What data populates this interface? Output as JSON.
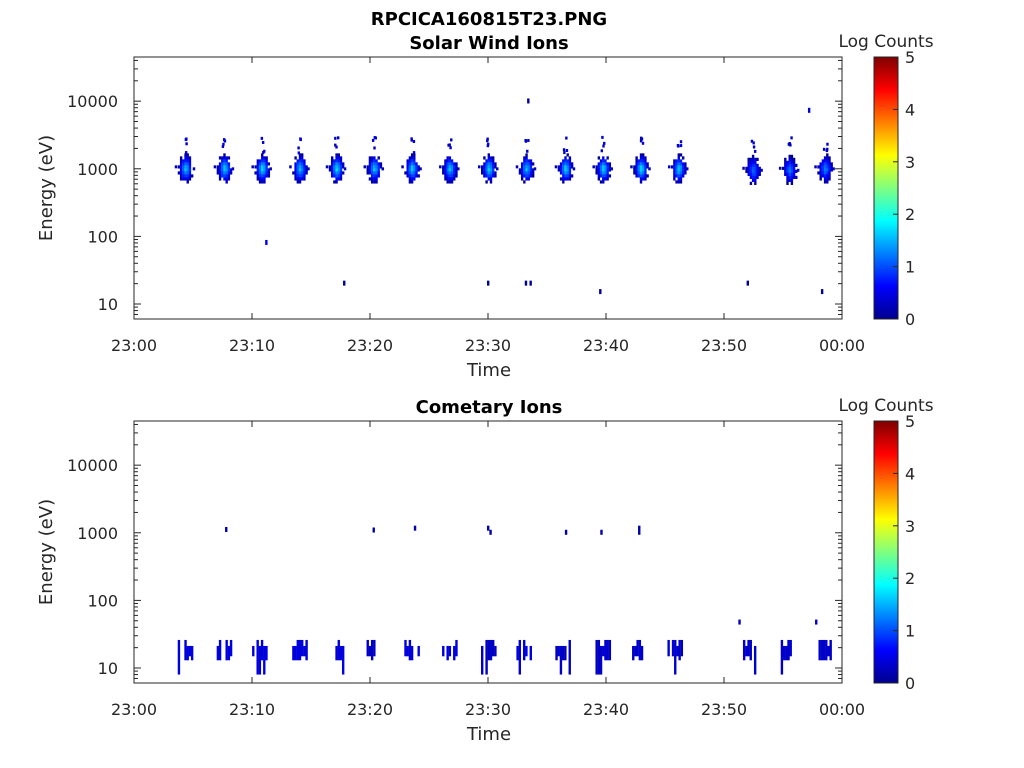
{
  "figure": {
    "title": "RPCICA160815T23.PNG"
  },
  "chart_data": [
    {
      "type": "heatmap",
      "title": "Solar Wind Ions",
      "xlabel": "Time",
      "ylabel": "Energy (eV)",
      "x_ticks": [
        "23:00",
        "23:10",
        "23:20",
        "23:30",
        "23:40",
        "23:50",
        "00:00"
      ],
      "y_ticks": [
        "10",
        "100",
        "1000",
        "10000"
      ],
      "y_scale": "log",
      "ylim": [
        6,
        45000
      ],
      "xlim_minutes": [
        0,
        60
      ],
      "colorbar": {
        "label": "Log Counts",
        "ticks": [
          "0",
          "1",
          "2",
          "3",
          "4",
          "5"
        ],
        "range": [
          0,
          5
        ],
        "colormap": "jet"
      },
      "blobs": [
        {
          "t": 4.3,
          "e": 1050,
          "peak": 1.6
        },
        {
          "t": 7.6,
          "e": 1050,
          "peak": 1.7
        },
        {
          "t": 10.8,
          "e": 1050,
          "peak": 1.8
        },
        {
          "t": 14.0,
          "e": 1050,
          "peak": 1.6
        },
        {
          "t": 17.1,
          "e": 1050,
          "peak": 1.8
        },
        {
          "t": 20.3,
          "e": 1050,
          "peak": 1.6
        },
        {
          "t": 23.5,
          "e": 1050,
          "peak": 1.7
        },
        {
          "t": 26.7,
          "e": 1050,
          "peak": 1.6
        },
        {
          "t": 30.0,
          "e": 1050,
          "peak": 1.7
        },
        {
          "t": 33.2,
          "e": 1050,
          "peak": 1.6
        },
        {
          "t": 36.5,
          "e": 1050,
          "peak": 1.7
        },
        {
          "t": 39.7,
          "e": 1050,
          "peak": 1.7
        },
        {
          "t": 42.9,
          "e": 1050,
          "peak": 1.8
        },
        {
          "t": 46.1,
          "e": 1050,
          "peak": 1.7
        },
        {
          "t": 52.4,
          "e": 1000,
          "peak": 1.2
        },
        {
          "t": 55.5,
          "e": 1000,
          "peak": 1.2
        },
        {
          "t": 58.5,
          "e": 1050,
          "peak": 1.3
        }
      ],
      "points": [
        {
          "t": 11.2,
          "e": 80,
          "v": 0.5
        },
        {
          "t": 17.8,
          "e": 20,
          "v": 0.1
        },
        {
          "t": 30.0,
          "e": 20,
          "v": 0.1
        },
        {
          "t": 33.2,
          "e": 20,
          "v": 0.1
        },
        {
          "t": 33.6,
          "e": 20,
          "v": 0.1
        },
        {
          "t": 39.5,
          "e": 15,
          "v": 0.1
        },
        {
          "t": 52.0,
          "e": 20,
          "v": 0.1
        },
        {
          "t": 58.3,
          "e": 15,
          "v": 0.1
        },
        {
          "t": 33.4,
          "e": 9900,
          "v": 0.1
        },
        {
          "t": 57.2,
          "e": 7200,
          "v": 0.4
        }
      ]
    },
    {
      "type": "heatmap",
      "title": "Cometary Ions",
      "xlabel": "Time",
      "ylabel": "Energy (eV)",
      "x_ticks": [
        "23:00",
        "23:10",
        "23:20",
        "23:30",
        "23:40",
        "23:50",
        "00:00"
      ],
      "y_ticks": [
        "10",
        "100",
        "1000",
        "10000"
      ],
      "y_scale": "log",
      "ylim": [
        6,
        45000
      ],
      "xlim_minutes": [
        0,
        60
      ],
      "colorbar": {
        "label": "Log Counts",
        "ticks": [
          "0",
          "1",
          "2",
          "3",
          "4",
          "5"
        ],
        "range": [
          0,
          5
        ],
        "colormap": "jet"
      },
      "columns": [
        {
          "t": 4.3,
          "v": 0.4
        },
        {
          "t": 7.6,
          "v": 0.4
        },
        {
          "t": 10.6,
          "v": 0.4
        },
        {
          "t": 14.0,
          "v": 0.4
        },
        {
          "t": 17.1,
          "v": 0.4
        },
        {
          "t": 20.3,
          "v": 0.3
        },
        {
          "t": 23.5,
          "v": 0.4
        },
        {
          "t": 26.7,
          "v": 0.4
        },
        {
          "t": 30.0,
          "v": 0.3
        },
        {
          "t": 33.0,
          "v": 0.4
        },
        {
          "t": 36.3,
          "v": 0.3
        },
        {
          "t": 39.7,
          "v": 0.3
        },
        {
          "t": 42.8,
          "v": 0.3
        },
        {
          "t": 45.8,
          "v": 0.3
        },
        {
          "t": 52.2,
          "v": 0.3
        },
        {
          "t": 55.4,
          "v": 0.3
        },
        {
          "t": 58.6,
          "v": 0.3
        }
      ],
      "points": [
        {
          "t": 7.8,
          "e": 1100,
          "v": 0.2
        },
        {
          "t": 20.3,
          "e": 1080,
          "v": 0.2
        },
        {
          "t": 23.8,
          "e": 1150,
          "v": 0.2
        },
        {
          "t": 30.0,
          "e": 1150,
          "v": 0.2
        },
        {
          "t": 30.2,
          "e": 1000,
          "v": 0.2
        },
        {
          "t": 36.6,
          "e": 1000,
          "v": 0.2
        },
        {
          "t": 39.6,
          "e": 1000,
          "v": 0.2
        },
        {
          "t": 42.8,
          "e": 1150,
          "v": 0.2
        },
        {
          "t": 42.8,
          "e": 1000,
          "v": 0.2
        },
        {
          "t": 51.3,
          "e": 47,
          "v": 0.3
        },
        {
          "t": 57.8,
          "e": 47,
          "v": 0.3
        }
      ]
    }
  ]
}
